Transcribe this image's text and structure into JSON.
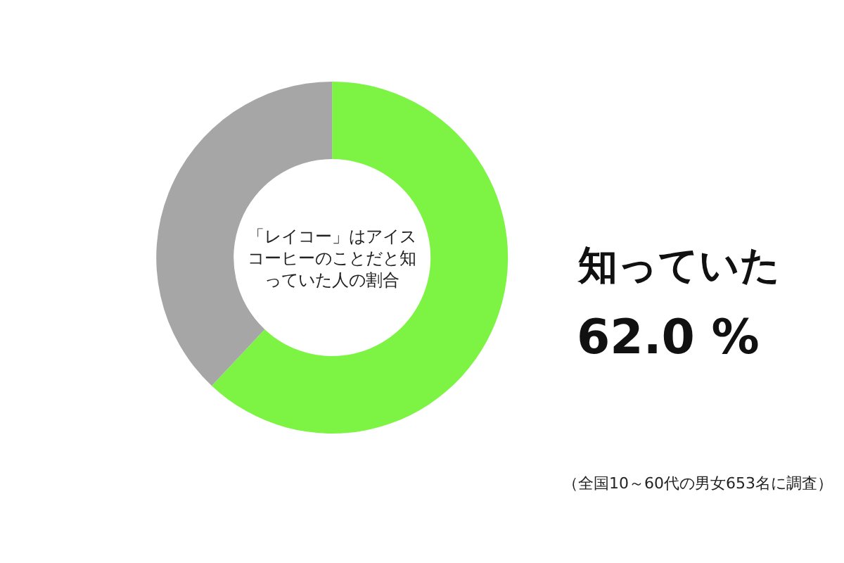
{
  "chart_data": {
    "type": "donut",
    "title": "「レイコー」はアイスコーヒーのことだと知っていた人の割合",
    "categories": [
      "知っていた",
      null
    ],
    "values": [
      62.0,
      38.0
    ],
    "colors": [
      "#7df443",
      "#a6a6a6"
    ],
    "value_labels": [
      "62.0 %",
      null
    ],
    "annotations": [
      "（全国10～60代の男女653名に調査）"
    ],
    "legend": false
  }
}
